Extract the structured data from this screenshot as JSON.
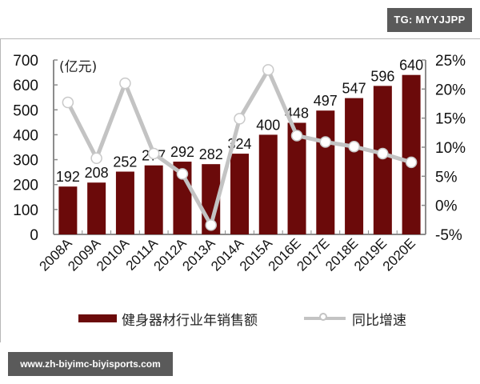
{
  "watermark_top": "TG: MYYJJPP",
  "watermark_bottom": "www.zh-biyimc-biyisports.com",
  "chart_data": {
    "type": "bar+line",
    "title": "",
    "unit_label": "(亿元)",
    "categories": [
      "2008A",
      "2009A",
      "2010A",
      "2011A",
      "2012A",
      "2013A",
      "2014A",
      "2015A",
      "2016E",
      "2017E",
      "2018E",
      "2019E",
      "2020E"
    ],
    "series": [
      {
        "name": "健身器材行业年销售额",
        "type": "bar",
        "axis": "left",
        "color": "#6b0a0a",
        "values": [
          192,
          208,
          252,
          277,
          292,
          282,
          324,
          400,
          448,
          497,
          547,
          596,
          640
        ]
      },
      {
        "name": "同比增速",
        "type": "line",
        "axis": "right",
        "color": "#c3c3c3",
        "values": [
          17.7,
          8.1,
          21.0,
          8.9,
          5.4,
          -3.4,
          14.9,
          23.3,
          12.0,
          10.9,
          10.1,
          8.9,
          7.4
        ]
      }
    ],
    "left_axis": {
      "ylim": [
        0,
        700
      ],
      "ticks": [
        "0",
        "100",
        "200",
        "300",
        "400",
        "500",
        "600",
        "700"
      ]
    },
    "right_axis": {
      "ylim": [
        -5,
        25
      ],
      "ticks": [
        "-5%",
        "0%",
        "5%",
        "10%",
        "15%",
        "20%",
        "25%"
      ]
    },
    "grid": false,
    "legend_position": "bottom"
  },
  "legend": {
    "bar_label": "健身器材行业年销售额",
    "line_label": "同比增速"
  }
}
